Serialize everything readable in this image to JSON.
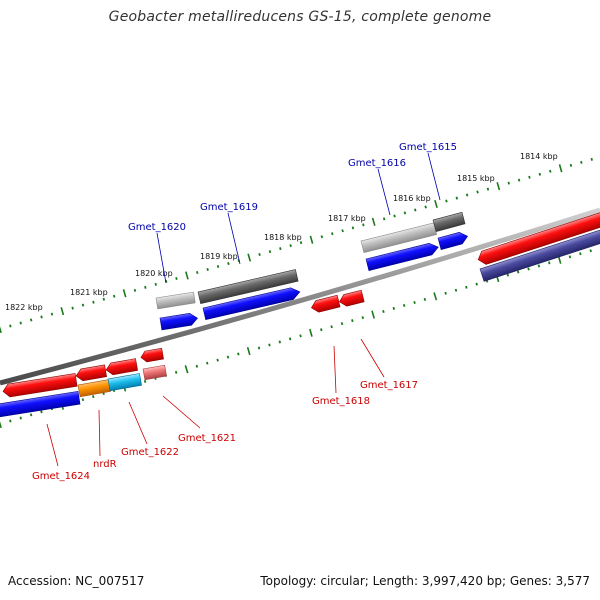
{
  "title": "Geobacter metallireducens GS-15, complete genome",
  "accession_text": "Accession: NC_007517",
  "summary_text": "Topology: circular; Length: 3,997,420 bp; Genes: 3,577",
  "kbp_labels": [
    "1822 kbp",
    "1821 kbp",
    "1820 kbp",
    "1819 kbp",
    "1818 kbp",
    "1817 kbp",
    "1816 kbp",
    "1815 kbp",
    "1814 kbp"
  ],
  "top_gene_labels": [
    "Gmet_1620",
    "Gmet_1619",
    "Gmet_1616",
    "Gmet_1615"
  ],
  "bottom_gene_labels": [
    "Gmet_1624",
    "nrdR",
    "Gmet_1622",
    "Gmet_1621",
    "Gmet_1618",
    "Gmet_1617"
  ],
  "colors": {
    "backbone": "#8a8a8a",
    "tick": "#1a7a1a",
    "forward_cds": "#0000ee",
    "reverse_cds": "#ee0000",
    "trna_grey": "#b8b8b8",
    "dark_grey": "#666666",
    "orange": "#ff9900",
    "cyan": "#22bbee",
    "pink": "#ee7777",
    "navy": "#444499",
    "top_label": "#0000aa",
    "bottom_label": "#cc0000"
  }
}
